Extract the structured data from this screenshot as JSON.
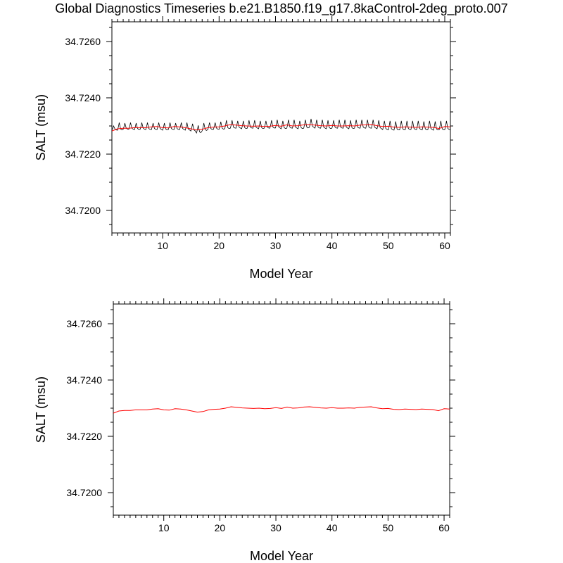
{
  "title": "Global Diagnostics Timeseries b.e21.B1850.f19_g17.8kaControl-2deg_proto.007",
  "colors": {
    "monthly": "#000000",
    "annual": "#ff0000",
    "frame": "#000000"
  },
  "chart_data": [
    {
      "type": "line",
      "xlabel": "Model Year",
      "ylabel": "SALT (msu)",
      "xlim": [
        1,
        61
      ],
      "ylim": [
        34.7192,
        34.7267
      ],
      "xticks": [
        "10",
        "20",
        "30",
        "40",
        "50",
        "60"
      ],
      "yticks": [
        "34.7200",
        "34.7220",
        "34.7240",
        "34.7260"
      ],
      "series": [
        {
          "style": "monthly",
          "color": "#000000",
          "x": [
            1,
            2,
            3,
            4,
            5,
            6,
            7,
            8,
            9,
            10,
            11,
            12,
            13,
            14,
            15,
            16,
            17,
            18,
            19,
            20,
            21,
            22,
            23,
            24,
            25,
            26,
            27,
            28,
            29,
            30,
            31,
            32,
            33,
            34,
            35,
            36,
            37,
            38,
            39,
            40,
            41,
            42,
            43,
            44,
            45,
            46,
            47,
            48,
            49,
            50,
            51,
            52,
            53,
            54,
            55,
            56,
            57,
            58,
            59,
            60
          ],
          "peak": [
            34.723,
            34.72312,
            34.7231,
            34.72312,
            34.7231,
            34.72312,
            34.72312,
            34.7231,
            34.72312,
            34.7231,
            34.72312,
            34.7231,
            34.72312,
            34.72312,
            34.72308,
            34.72302,
            34.7231,
            34.72312,
            34.72312,
            34.72315,
            34.7232,
            34.7232,
            34.72318,
            34.72318,
            34.7232,
            34.7232,
            34.72318,
            34.72318,
            34.7232,
            34.72322,
            34.72318,
            34.72322,
            34.72322,
            34.72318,
            34.72322,
            34.72325,
            34.72322,
            34.72322,
            34.7232,
            34.7232,
            34.72322,
            34.72322,
            34.7232,
            34.72322,
            34.72322,
            34.72322,
            34.72322,
            34.7232,
            34.72318,
            34.72318,
            34.72316,
            34.72318,
            34.72318,
            34.72318,
            34.72318,
            34.72316,
            34.72318,
            34.72316,
            34.72318,
            34.72318
          ],
          "trough": [
            34.72285,
            34.72285,
            34.72288,
            34.72288,
            34.72287,
            34.72288,
            34.72287,
            34.72287,
            34.72287,
            34.72285,
            34.72287,
            34.72287,
            34.72287,
            34.72285,
            34.72282,
            34.72275,
            34.72283,
            34.72287,
            34.72288,
            34.72288,
            34.7229,
            34.72292,
            34.72292,
            34.7229,
            34.72292,
            34.72292,
            34.7229,
            34.72292,
            34.72292,
            34.72293,
            34.7229,
            34.72292,
            34.72292,
            34.7229,
            34.72292,
            34.72295,
            34.72292,
            34.72292,
            34.7229,
            34.72292,
            34.72292,
            34.72292,
            34.7229,
            34.72292,
            34.72292,
            34.72292,
            34.72292,
            34.7229,
            34.72287,
            34.72286,
            34.72285,
            34.72286,
            34.72287,
            34.72287,
            34.72287,
            34.72286,
            34.72287,
            34.72285,
            34.72286,
            34.72287
          ]
        },
        {
          "style": "annual",
          "color": "#ff0000",
          "x": [
            1,
            2,
            3,
            4,
            5,
            6,
            7,
            8,
            9,
            10,
            11,
            12,
            13,
            14,
            15,
            16,
            17,
            18,
            19,
            20,
            21,
            22,
            23,
            24,
            25,
            26,
            27,
            28,
            29,
            30,
            31,
            32,
            33,
            34,
            35,
            36,
            37,
            38,
            39,
            40,
            41,
            42,
            43,
            44,
            45,
            46,
            47,
            48,
            49,
            50,
            51,
            52,
            53,
            54,
            55,
            56,
            57,
            58,
            59,
            60,
            61
          ],
          "y": [
            34.72282,
            34.7229,
            34.72292,
            34.72292,
            34.72294,
            34.72294,
            34.72294,
            34.72297,
            34.72298,
            34.72294,
            34.72293,
            34.72298,
            34.72297,
            34.72294,
            34.7229,
            34.72286,
            34.72288,
            34.72294,
            34.72296,
            34.72297,
            34.723,
            34.72305,
            34.72303,
            34.72301,
            34.723,
            34.72299,
            34.723,
            34.72298,
            34.72299,
            34.72302,
            34.72299,
            34.72304,
            34.723,
            34.72301,
            34.72304,
            34.72305,
            34.72303,
            34.72301,
            34.723,
            34.72302,
            34.723,
            34.723,
            34.72301,
            34.723,
            34.72303,
            34.72304,
            34.72305,
            34.72301,
            34.72298,
            34.72299,
            34.72296,
            34.72295,
            34.72297,
            34.72296,
            34.72295,
            34.72297,
            34.72296,
            34.72295,
            34.72291,
            34.72298,
            34.72297
          ]
        }
      ]
    },
    {
      "type": "line",
      "xlabel": "Model Year",
      "ylabel": "SALT (msu)",
      "xlim": [
        1,
        61
      ],
      "ylim": [
        34.7192,
        34.7267
      ],
      "xticks": [
        "10",
        "20",
        "30",
        "40",
        "50",
        "60"
      ],
      "yticks": [
        "34.7200",
        "34.7220",
        "34.7240",
        "34.7260"
      ],
      "series": [
        {
          "style": "annual",
          "color": "#ff0000",
          "x": [
            1,
            2,
            3,
            4,
            5,
            6,
            7,
            8,
            9,
            10,
            11,
            12,
            13,
            14,
            15,
            16,
            17,
            18,
            19,
            20,
            21,
            22,
            23,
            24,
            25,
            26,
            27,
            28,
            29,
            30,
            31,
            32,
            33,
            34,
            35,
            36,
            37,
            38,
            39,
            40,
            41,
            42,
            43,
            44,
            45,
            46,
            47,
            48,
            49,
            50,
            51,
            52,
            53,
            54,
            55,
            56,
            57,
            58,
            59,
            60,
            61
          ],
          "y": [
            34.72282,
            34.7229,
            34.72292,
            34.72292,
            34.72294,
            34.72294,
            34.72294,
            34.72297,
            34.72298,
            34.72294,
            34.72293,
            34.72298,
            34.72297,
            34.72294,
            34.7229,
            34.72286,
            34.72288,
            34.72294,
            34.72296,
            34.72297,
            34.723,
            34.72305,
            34.72303,
            34.72301,
            34.723,
            34.72299,
            34.723,
            34.72298,
            34.72299,
            34.72302,
            34.72299,
            34.72304,
            34.723,
            34.72301,
            34.72304,
            34.72305,
            34.72303,
            34.72301,
            34.723,
            34.72302,
            34.723,
            34.723,
            34.72301,
            34.723,
            34.72303,
            34.72304,
            34.72305,
            34.72301,
            34.72298,
            34.72299,
            34.72296,
            34.72295,
            34.72297,
            34.72296,
            34.72295,
            34.72297,
            34.72296,
            34.72295,
            34.72291,
            34.72298,
            34.72297
          ]
        }
      ]
    }
  ]
}
